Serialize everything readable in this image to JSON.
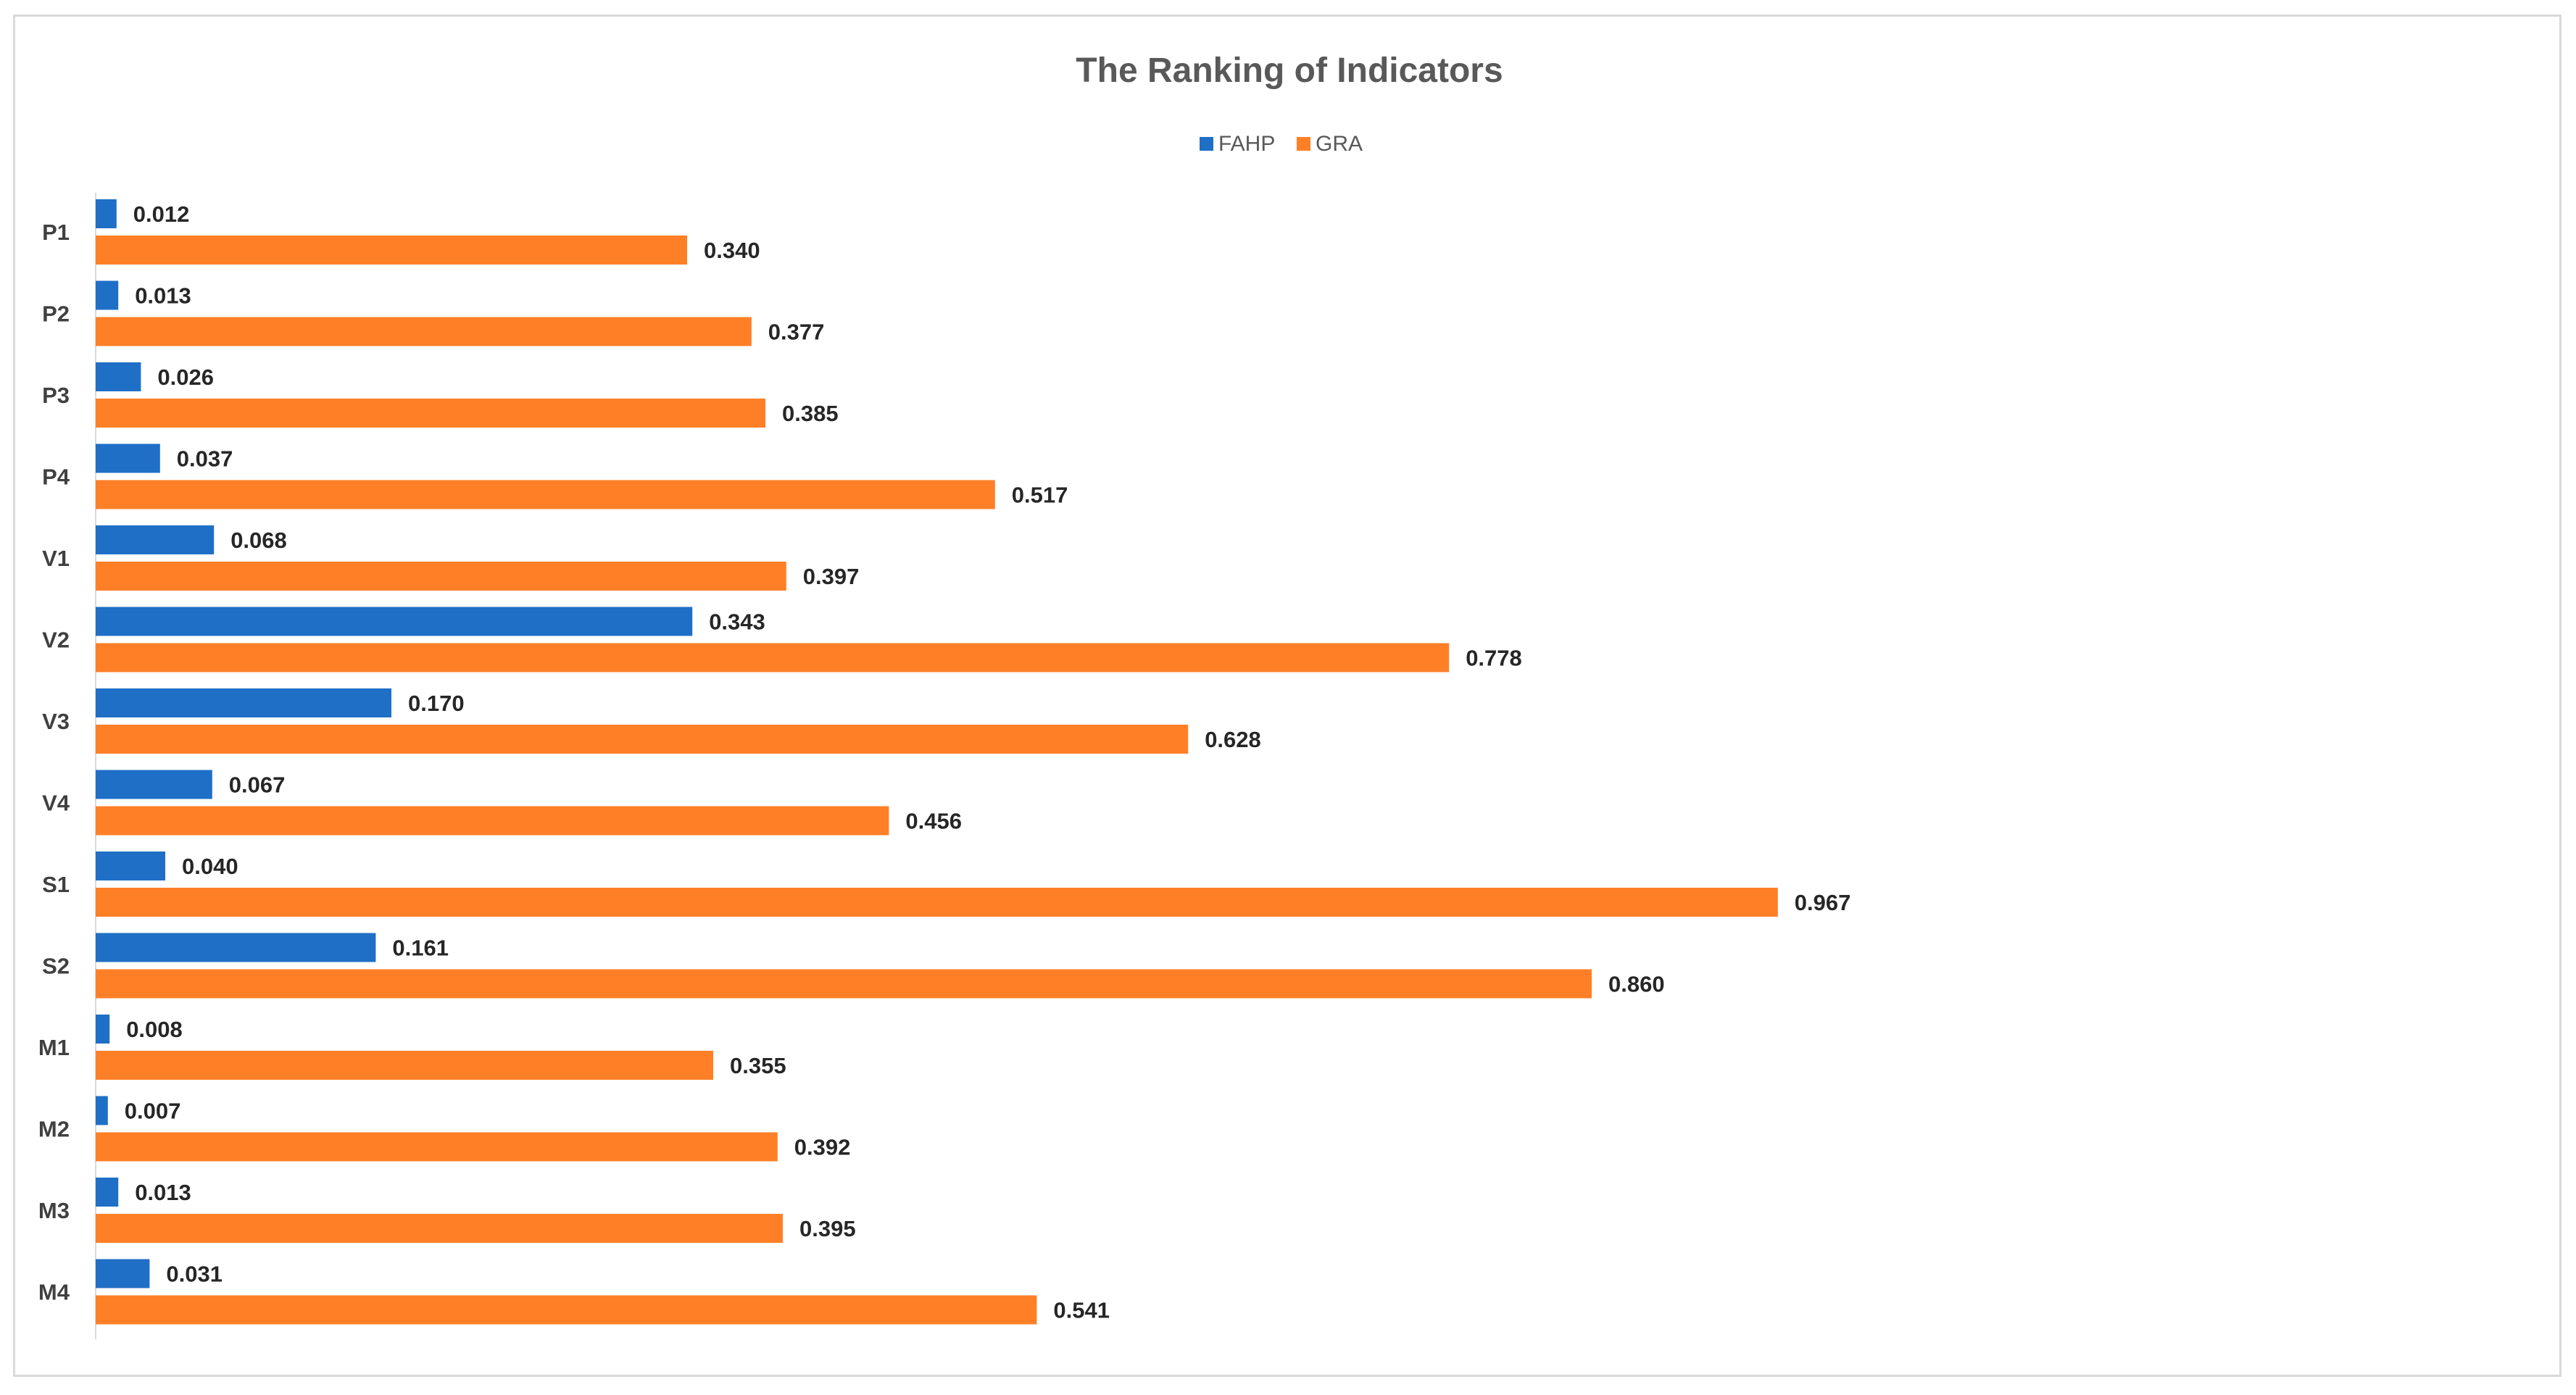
{
  "chart_data": {
    "type": "bar",
    "orientation": "horizontal",
    "title": "The Ranking of Indicators",
    "xlabel": "",
    "ylabel": "",
    "xlim": [
      0,
      1
    ],
    "grid": false,
    "legend_position": "top-center",
    "categories": [
      "P1",
      "P2",
      "P3",
      "P4",
      "V1",
      "V2",
      "V3",
      "V4",
      "S1",
      "S2",
      "M1",
      "M2",
      "M3",
      "M4"
    ],
    "series": [
      {
        "name": "FAHP",
        "color": "#1F6FC6",
        "values": [
          0.012,
          0.013,
          0.026,
          0.037,
          0.068,
          0.343,
          0.17,
          0.067,
          0.04,
          0.161,
          0.008,
          0.007,
          0.013,
          0.031
        ],
        "labels": [
          "0.012",
          "0.013",
          "0.026",
          "0.037",
          "0.068",
          "0.343",
          "0.170",
          "0.067",
          "0.040",
          "0.161",
          "0.008",
          "0.007",
          "0.013",
          "0.031"
        ]
      },
      {
        "name": "GRA",
        "color": "#FF7F27",
        "values": [
          0.34,
          0.377,
          0.385,
          0.517,
          0.397,
          0.778,
          0.628,
          0.456,
          0.967,
          0.86,
          0.355,
          0.392,
          0.395,
          0.541
        ],
        "labels": [
          "0.340",
          "0.377",
          "0.385",
          "0.517",
          "0.397",
          "0.778",
          "0.628",
          "0.456",
          "0.967",
          "0.860",
          "0.355",
          "0.392",
          "0.395",
          "0.541"
        ]
      }
    ]
  }
}
